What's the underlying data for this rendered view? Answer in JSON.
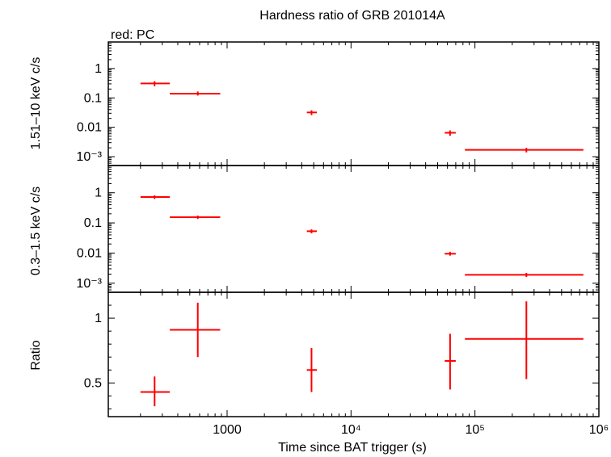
{
  "title": "Hardness ratio of GRB 201014A",
  "legend_label": "red: PC",
  "xlabel": "Time since BAT trigger (s)",
  "colors": {
    "data": "#ff0000",
    "axis": "#000000"
  },
  "chart_data": [
    {
      "type": "scatter",
      "panel": "top",
      "ylabel": "1.51–10 keV c/s",
      "xscale": "log",
      "yscale": "log",
      "xlim": [
        110,
        1000000
      ],
      "ylim": [
        0.0005,
        8
      ],
      "yticks": [
        {
          "v": 1,
          "label": "1"
        },
        {
          "v": 0.1,
          "label": "0.1"
        },
        {
          "v": 0.01,
          "label": "0.01"
        },
        {
          "v": 0.001,
          "label": "10⁻³"
        }
      ],
      "series": [
        {
          "points": [
            {
              "x": 260,
              "xlo": 200,
              "xhi": 345,
              "y": 0.31,
              "ylo": 0.25,
              "yhi": 0.37
            },
            {
              "x": 580,
              "xlo": 345,
              "xhi": 880,
              "y": 0.14,
              "ylo": 0.12,
              "yhi": 0.165
            },
            {
              "x": 4800,
              "xlo": 4400,
              "xhi": 5300,
              "y": 0.032,
              "ylo": 0.026,
              "yhi": 0.038
            },
            {
              "x": 63000,
              "xlo": 57000,
              "xhi": 70000,
              "y": 0.0065,
              "ylo": 0.0052,
              "yhi": 0.0078
            },
            {
              "x": 260000,
              "xlo": 83000,
              "xhi": 750000,
              "y": 0.0017,
              "ylo": 0.0014,
              "yhi": 0.002
            }
          ]
        }
      ]
    },
    {
      "type": "scatter",
      "panel": "middle",
      "ylabel": "0.3–1.5 keV c/s",
      "xscale": "log",
      "yscale": "log",
      "xlim": [
        110,
        1000000
      ],
      "ylim": [
        0.0005,
        8
      ],
      "yticks": [
        {
          "v": 1,
          "label": "1"
        },
        {
          "v": 0.1,
          "label": "0.1"
        },
        {
          "v": 0.01,
          "label": "0.01"
        },
        {
          "v": 0.001,
          "label": "10⁻³"
        }
      ],
      "series": [
        {
          "points": [
            {
              "x": 260,
              "xlo": 200,
              "xhi": 345,
              "y": 0.72,
              "ylo": 0.62,
              "yhi": 0.82
            },
            {
              "x": 580,
              "xlo": 345,
              "xhi": 880,
              "y": 0.155,
              "ylo": 0.135,
              "yhi": 0.175
            },
            {
              "x": 4800,
              "xlo": 4400,
              "xhi": 5300,
              "y": 0.053,
              "ylo": 0.045,
              "yhi": 0.061
            },
            {
              "x": 63000,
              "xlo": 57000,
              "xhi": 70000,
              "y": 0.0095,
              "ylo": 0.0082,
              "yhi": 0.011
            },
            {
              "x": 260000,
              "xlo": 83000,
              "xhi": 750000,
              "y": 0.0019,
              "ylo": 0.0016,
              "yhi": 0.0022
            }
          ]
        }
      ]
    },
    {
      "type": "scatter",
      "panel": "bottom",
      "ylabel": "Ratio",
      "xscale": "log",
      "yscale": "linear",
      "xlim": [
        110,
        1000000
      ],
      "ylim": [
        0.24,
        1.2
      ],
      "yticks": [
        {
          "v": 1,
          "label": "1"
        },
        {
          "v": 0.5,
          "label": "0.5"
        }
      ],
      "xticks": [
        {
          "v": 1000,
          "label": "1000"
        },
        {
          "v": 10000,
          "label": "10⁴"
        },
        {
          "v": 100000,
          "label": "10⁵"
        },
        {
          "v": 1000000,
          "label": "10⁶"
        }
      ],
      "series": [
        {
          "points": [
            {
              "x": 260,
              "xlo": 200,
              "xhi": 345,
              "y": 0.43,
              "ylo": 0.32,
              "yhi": 0.55
            },
            {
              "x": 580,
              "xlo": 345,
              "xhi": 880,
              "y": 0.91,
              "ylo": 0.7,
              "yhi": 1.12
            },
            {
              "x": 4800,
              "xlo": 4400,
              "xhi": 5300,
              "y": 0.6,
              "ylo": 0.43,
              "yhi": 0.77
            },
            {
              "x": 63000,
              "xlo": 57000,
              "xhi": 70000,
              "y": 0.67,
              "ylo": 0.45,
              "yhi": 0.88
            },
            {
              "x": 260000,
              "xlo": 83000,
              "xhi": 750000,
              "y": 0.84,
              "ylo": 0.53,
              "yhi": 1.13
            }
          ]
        }
      ]
    }
  ]
}
